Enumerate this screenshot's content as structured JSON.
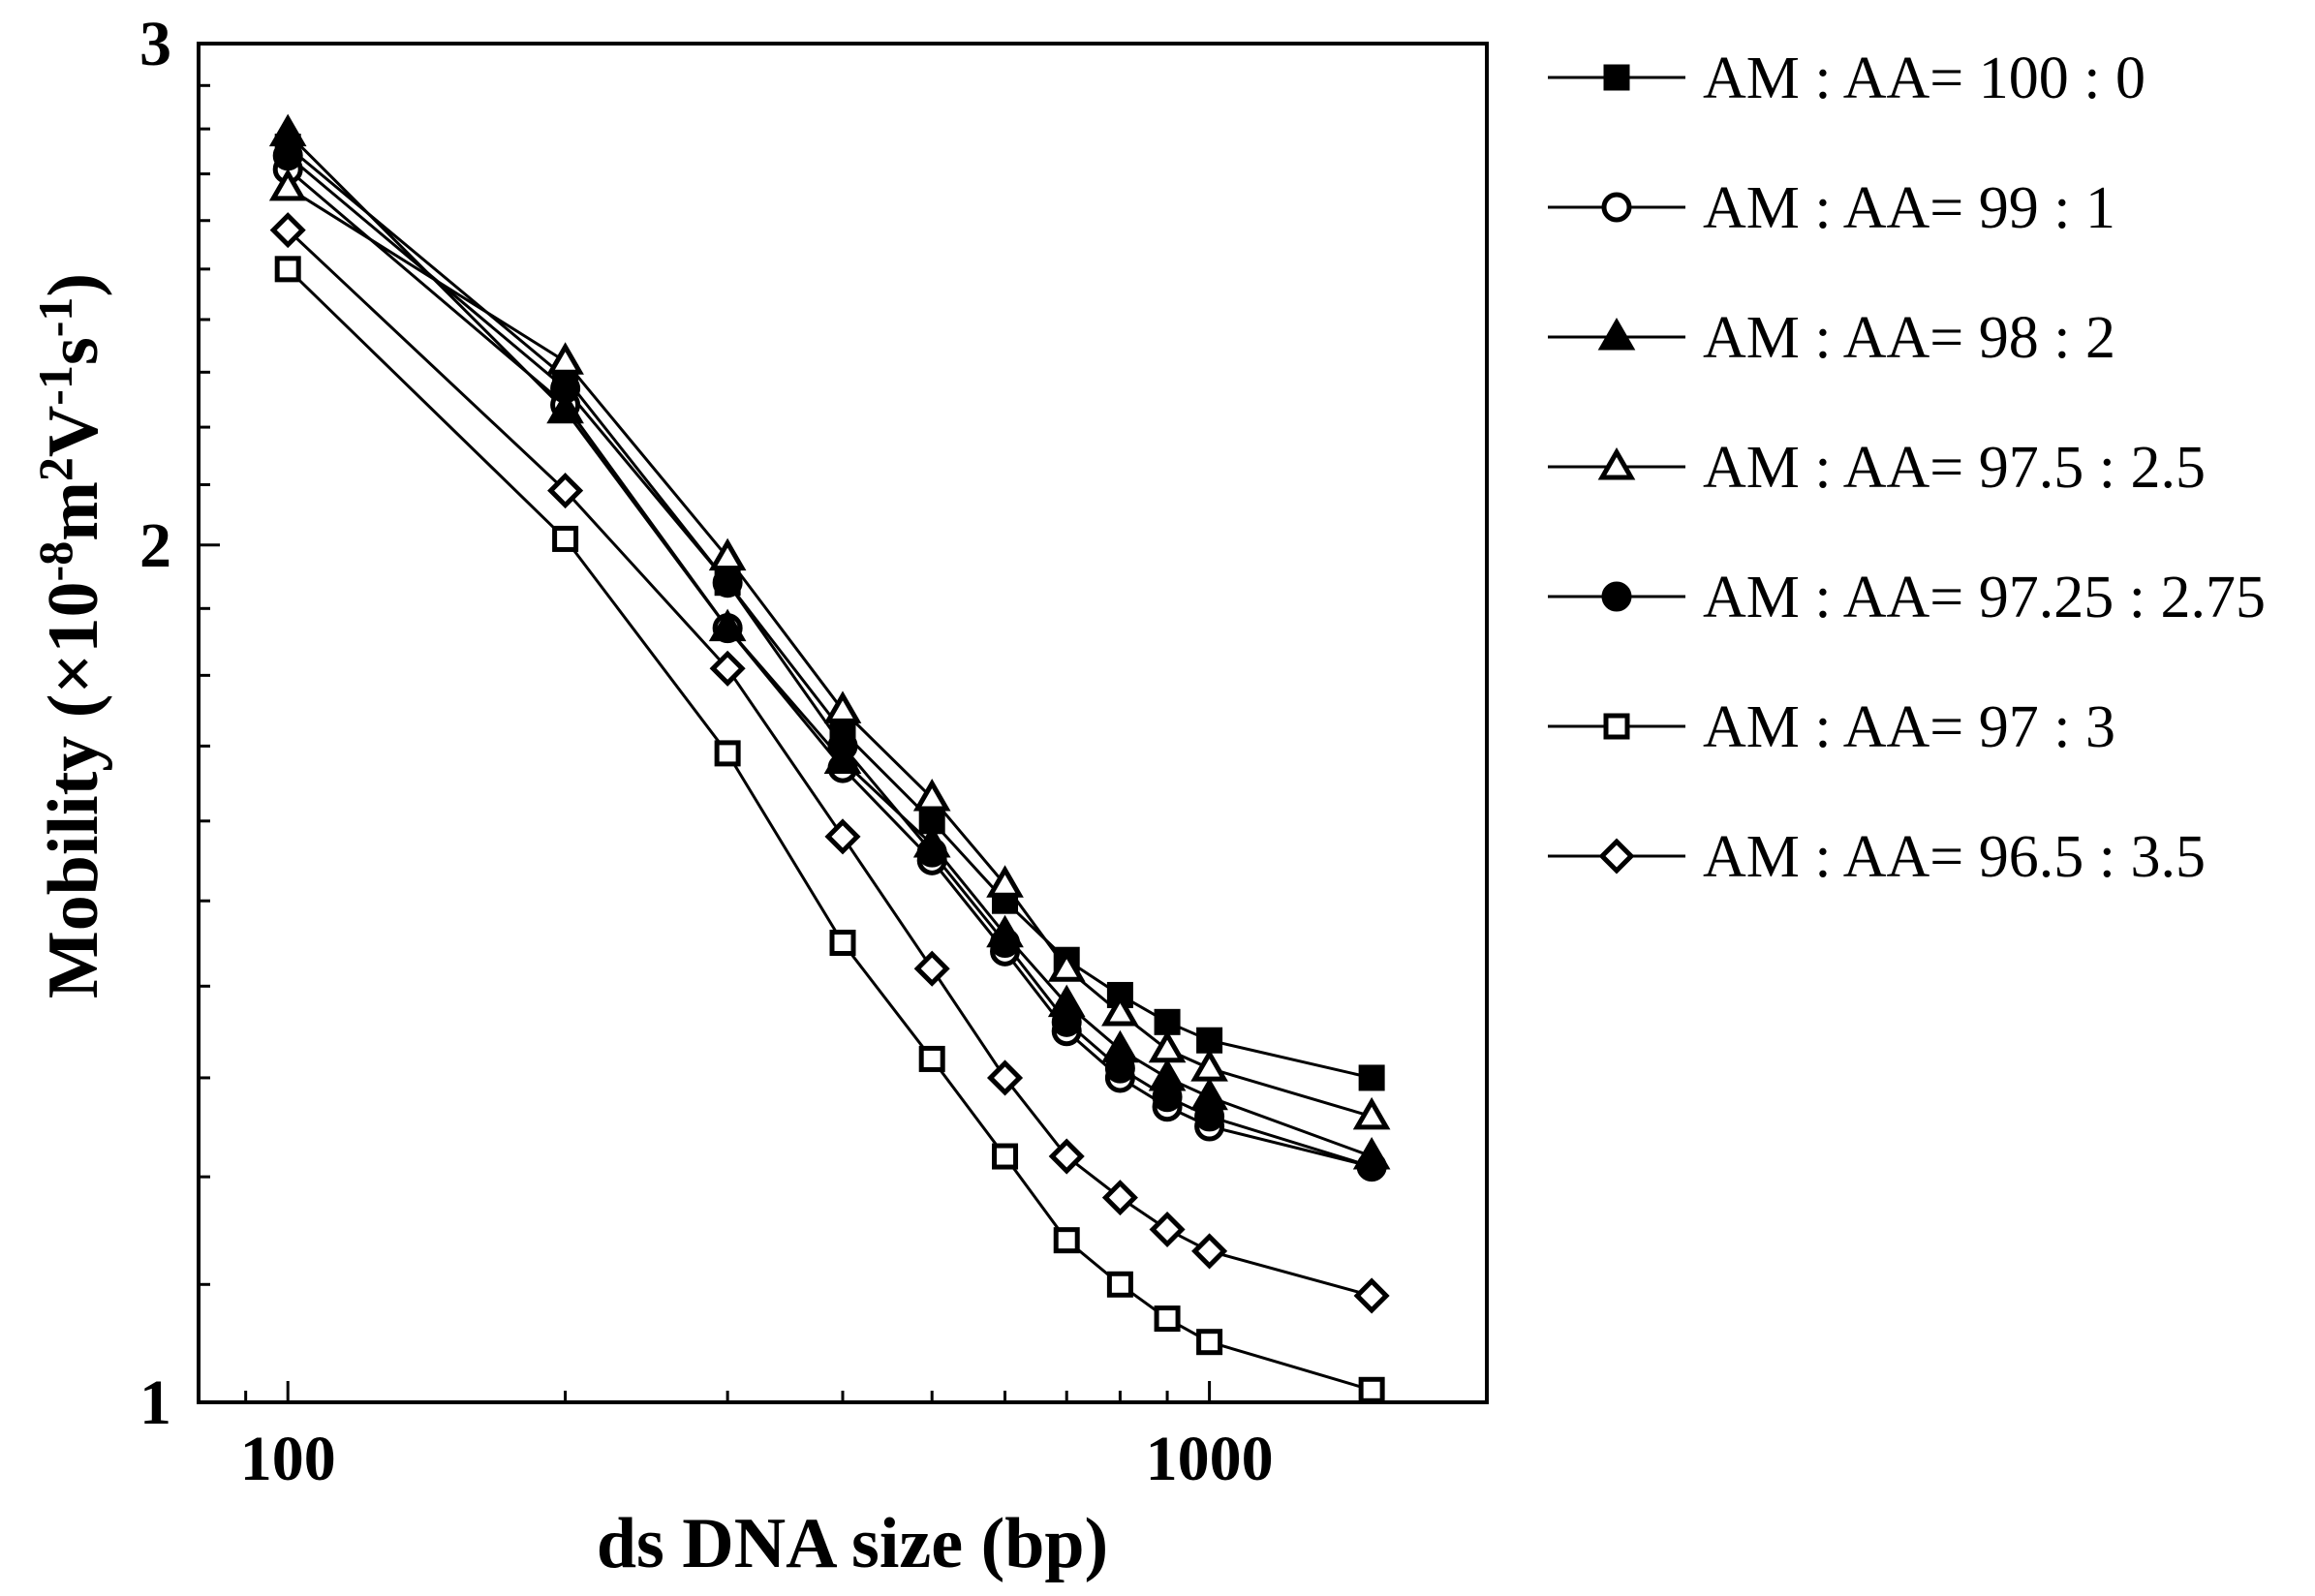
{
  "chart_data": {
    "type": "line",
    "x_scale": "log",
    "y_scale": "log",
    "xlabel": "ds DNA size (bp)",
    "ylabel_parts": [
      "Mobility (×10",
      "-8",
      "m",
      "2",
      "V",
      "-1",
      "s",
      "-1",
      ")"
    ],
    "xlim": [
      80,
      2000
    ],
    "ylim": [
      1,
      3
    ],
    "x_ticks": [
      {
        "value": 100,
        "label": "100"
      },
      {
        "value": 1000,
        "label": "1000"
      }
    ],
    "y_ticks": [
      {
        "value": 1,
        "label": "1"
      },
      {
        "value": 2,
        "label": "2"
      },
      {
        "value": 3,
        "label": "3"
      }
    ],
    "grid": false,
    "legend_position": "right",
    "x": [
      100,
      200,
      300,
      400,
      500,
      600,
      700,
      800,
      900,
      1000,
      1500
    ],
    "series": [
      {
        "name": "AM : AA= 100 : 0",
        "marker": "square",
        "filled": true,
        "values": [
          2.76,
          2.29,
          1.94,
          1.72,
          1.6,
          1.5,
          1.43,
          1.39,
          1.36,
          1.34,
          1.3
        ]
      },
      {
        "name": "AM : AA= 99 : 1",
        "marker": "circle",
        "filled": false,
        "values": [
          2.71,
          2.24,
          1.87,
          1.67,
          1.55,
          1.44,
          1.35,
          1.3,
          1.27,
          1.25,
          1.21
        ]
      },
      {
        "name": "AM : AA= 98 : 2",
        "marker": "triangle",
        "filled": true,
        "values": [
          2.79,
          2.23,
          1.87,
          1.68,
          1.57,
          1.46,
          1.38,
          1.33,
          1.3,
          1.28,
          1.22
        ]
      },
      {
        "name": "AM : AA= 97.5 : 2.5",
        "marker": "triangle",
        "filled": false,
        "values": [
          2.67,
          2.32,
          1.98,
          1.75,
          1.63,
          1.52,
          1.42,
          1.37,
          1.33,
          1.31,
          1.26
        ]
      },
      {
        "name": "AM : AA= 97.25 : 2.75",
        "marker": "circle",
        "filled": true,
        "values": [
          2.74,
          2.27,
          1.94,
          1.7,
          1.56,
          1.45,
          1.36,
          1.31,
          1.28,
          1.26,
          1.21
        ]
      },
      {
        "name": "AM : AA= 97 : 3",
        "marker": "square",
        "filled": false,
        "values": [
          2.5,
          2.01,
          1.69,
          1.45,
          1.32,
          1.22,
          1.14,
          1.1,
          1.07,
          1.05,
          1.01
        ]
      },
      {
        "name": "AM : AA= 96.5 : 3.5",
        "marker": "diamond",
        "filled": false,
        "values": [
          2.58,
          2.09,
          1.81,
          1.58,
          1.42,
          1.3,
          1.22,
          1.18,
          1.15,
          1.13,
          1.09
        ]
      }
    ]
  }
}
